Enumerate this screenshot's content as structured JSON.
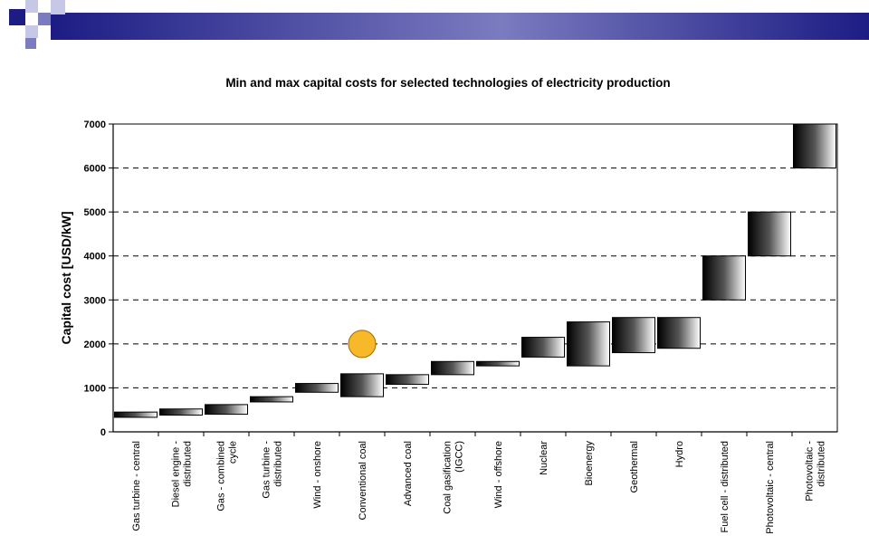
{
  "theme": {
    "header_dark": "#1c1c84",
    "header_mid": "#7b7bc0",
    "header_light": "#c7c7e6",
    "marker_fill": "#f7b92a",
    "marker_stroke": "#a06a00"
  },
  "chart_data": {
    "type": "bar",
    "title": "Min and max capital costs for selected technologies of electricity production",
    "xlabel": "",
    "ylabel": "Capital cost [USD/kW]",
    "ylim": [
      0,
      7000
    ],
    "yticks": [
      0,
      1000,
      2000,
      3000,
      4000,
      5000,
      6000,
      7000
    ],
    "grid": true,
    "legend": "none",
    "categories": [
      [
        "Gas turbine - central"
      ],
      [
        "Diesel engine -",
        "distributed"
      ],
      [
        "Gas - combined",
        "cycle"
      ],
      [
        "Gas turbine -",
        "distributed"
      ],
      [
        "Wind - onshore"
      ],
      [
        "Conventional coal"
      ],
      [
        "Advanced coal"
      ],
      [
        "Coal gasification",
        "(IGCC)"
      ],
      [
        "Wind - offshore"
      ],
      [
        "Nuclear"
      ],
      [
        "Bioenergy"
      ],
      [
        "Geothermal"
      ],
      [
        "Hydro"
      ],
      [
        "Fuel cell - distributed"
      ],
      [
        "Photovoltaic - central"
      ],
      [
        "Photovoltaic -",
        "distributed"
      ]
    ],
    "series": [
      {
        "min": [
          330,
          380,
          400,
          680,
          900,
          800,
          1080,
          1300,
          1500,
          1700,
          1500,
          1800,
          1900,
          3000,
          4000,
          6000
        ],
        "max": [
          450,
          520,
          620,
          800,
          1100,
          1320,
          1300,
          1600,
          1600,
          2150,
          2500,
          2600,
          2600,
          4000,
          5000,
          7000
        ]
      }
    ],
    "annotations": [
      {
        "type": "circle-marker",
        "category_index": 5,
        "y": 2000
      }
    ]
  }
}
